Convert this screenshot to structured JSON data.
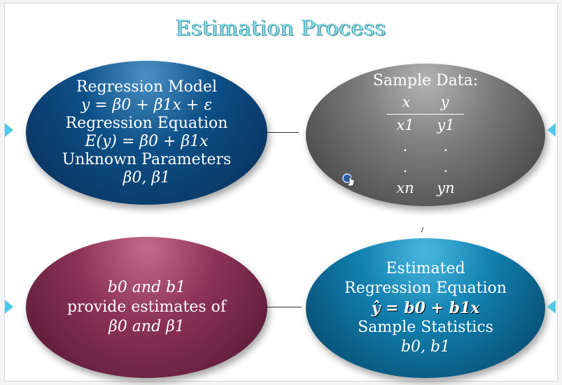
{
  "title": "Estimation Process",
  "model": {
    "line1": "Regression Model",
    "line2": "y = β0 + β1x + ε",
    "line3": "Regression Equation",
    "line4": "E(y) = β0 + β1x",
    "line5": "Unknown Parameters",
    "line6": "β0, β1"
  },
  "sample": {
    "heading": "Sample Data:",
    "col_x": "x",
    "col_y": "y",
    "rows": [
      [
        "x1",
        "y1"
      ],
      [
        ".",
        "."
      ],
      [
        ".",
        "."
      ],
      [
        "xn",
        "yn"
      ]
    ]
  },
  "estimates": {
    "line1": "b0 and b1",
    "line2": "provide estimates of",
    "line3": "β0 and β1"
  },
  "estimated": {
    "line1": "Estimated",
    "line2": "Regression Equation",
    "line3": "ŷ = b0 + b1x",
    "line4": "Sample Statistics",
    "line5": "b0, b1"
  },
  "colors": {
    "title": "#8de0ea",
    "model": "#0c4f86",
    "sample": "#7a7a7a",
    "estimates": "#8d3357",
    "estimated": "#117fae",
    "nav": "#50c8e8"
  },
  "icons": {
    "cursor": "hand-pointer-icon",
    "nav_prev": "triangle-left-icon",
    "nav_next": "triangle-right-icon"
  }
}
